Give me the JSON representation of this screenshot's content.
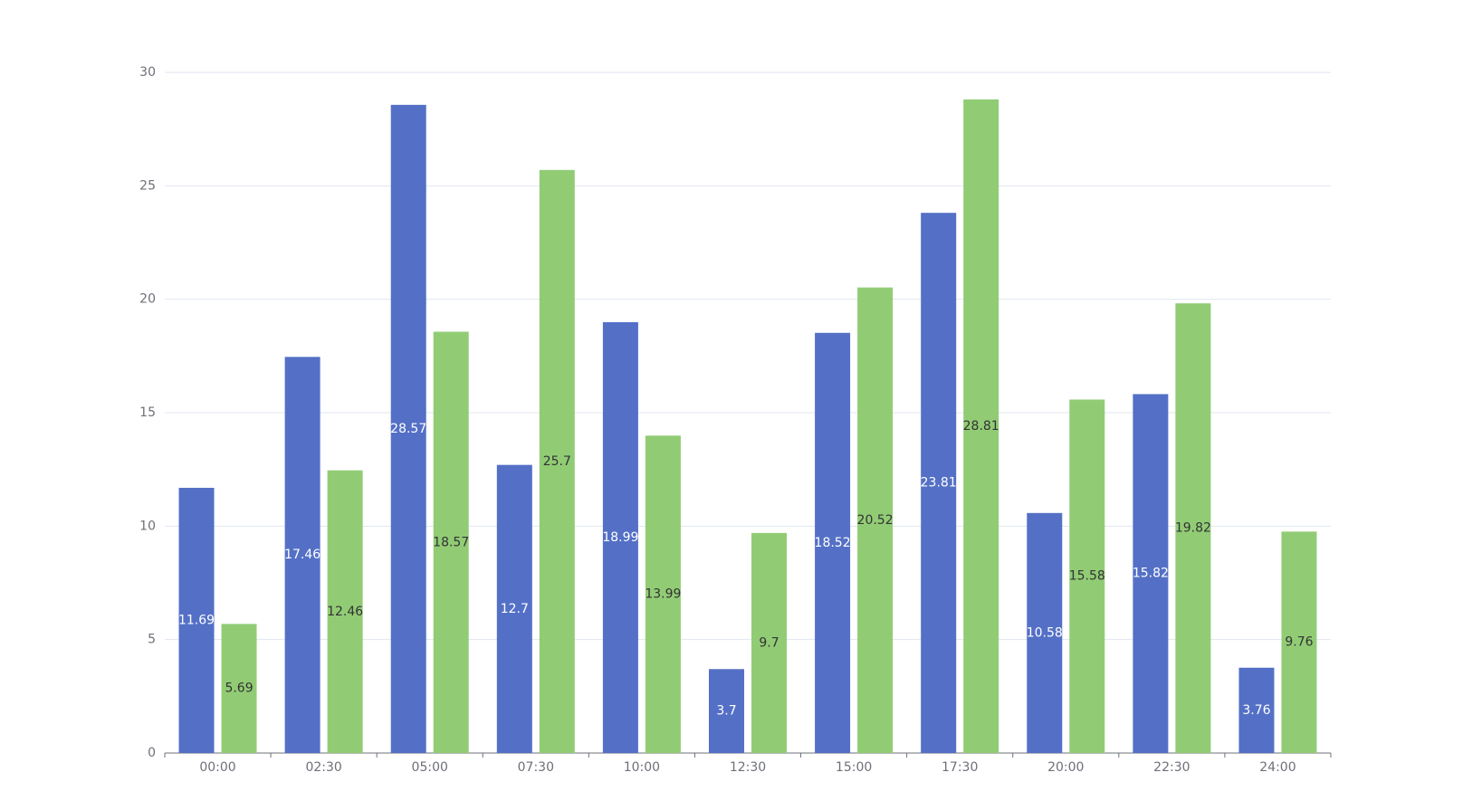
{
  "chart_data": {
    "type": "bar",
    "categories": [
      "00:00",
      "02:30",
      "05:00",
      "07:30",
      "10:00",
      "12:30",
      "15:00",
      "17:30",
      "20:00",
      "22:30",
      "24:00"
    ],
    "series": [
      {
        "color": "#5470c6",
        "label_color": "#ffffff",
        "values": [
          11.69,
          17.46,
          28.57,
          12.7,
          18.99,
          3.7,
          18.52,
          23.81,
          10.58,
          15.82,
          3.76
        ]
      },
      {
        "color": "#91cc75",
        "label_color": "#333333",
        "values": [
          5.69,
          12.46,
          18.57,
          25.7,
          13.99,
          9.7,
          20.52,
          28.81,
          15.58,
          19.82,
          9.76
        ]
      }
    ],
    "ylim": [
      0,
      30
    ],
    "yticks": [
      0,
      5,
      10,
      15,
      20,
      25,
      30
    ],
    "grid": true
  }
}
